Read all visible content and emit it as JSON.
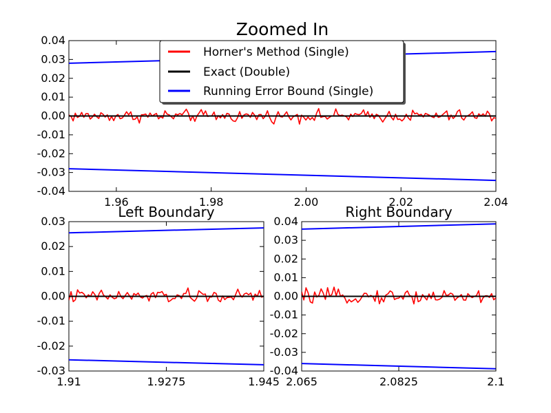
{
  "chart_data": [
    {
      "type": "line",
      "title": "Zoomed In",
      "xlabel": "",
      "ylabel": "",
      "xlim": [
        1.95,
        2.04
      ],
      "ylim": [
        -0.04,
        0.04
      ],
      "xticks": [
        "1.96",
        "1.98",
        "2.00",
        "2.02",
        "2.04"
      ],
      "yticks": [
        "0.04",
        "0.03",
        "0.02",
        "0.01",
        "0.00",
        "-0.01",
        "-0.02",
        "-0.03",
        "-0.04"
      ],
      "grid": false,
      "legend_position": "upper-center",
      "series": [
        {
          "name": "Horner's Method (Single)",
          "color": "#ff0000",
          "style": "noisy",
          "amplitude": 0.003,
          "x": [
            1.95,
            2.04
          ]
        },
        {
          "name": "Exact (Double)",
          "color": "#000000",
          "x": [
            1.95,
            2.04
          ],
          "y": [
            0.0,
            0.0
          ]
        },
        {
          "name": "Running Error Bound (Single)",
          "color": "#0000ff",
          "x": [
            1.95,
            2.04
          ],
          "y": [
            0.028,
            0.0342
          ]
        },
        {
          "name": "",
          "color": "#0000ff",
          "x": [
            1.95,
            2.04
          ],
          "y": [
            -0.028,
            -0.0342
          ]
        }
      ]
    },
    {
      "type": "line",
      "title": "Left Boundary",
      "xlim": [
        1.91,
        1.945
      ],
      "ylim": [
        -0.03,
        0.03
      ],
      "xticks": [
        "1.91",
        "1.9275",
        "1.945"
      ],
      "yticks": [
        "0.03",
        "0.02",
        "0.01",
        "0.00",
        "-0.01",
        "-0.02",
        "-0.03"
      ],
      "grid": false,
      "series": [
        {
          "name": "Horner's Method (Single)",
          "color": "#ff0000",
          "style": "noisy",
          "amplitude": 0.0025,
          "x": [
            1.91,
            1.945
          ]
        },
        {
          "name": "Exact (Double)",
          "color": "#000000",
          "x": [
            1.91,
            1.945
          ],
          "y": [
            0.0,
            0.0
          ]
        },
        {
          "name": "Running Error Bound (Single)",
          "color": "#0000ff",
          "x": [
            1.91,
            1.945
          ],
          "y": [
            0.0255,
            0.0275
          ]
        },
        {
          "name": "",
          "color": "#0000ff",
          "x": [
            1.91,
            1.945
          ],
          "y": [
            -0.0255,
            -0.0275
          ]
        }
      ]
    },
    {
      "type": "line",
      "title": "Right Boundary",
      "xlim": [
        2.065,
        2.1
      ],
      "ylim": [
        -0.04,
        0.04
      ],
      "xticks": [
        "2.065",
        "2.0825",
        "2.1"
      ],
      "yticks": [
        "0.04",
        "0.03",
        "0.02",
        "0.01",
        "0.00",
        "-0.01",
        "-0.02",
        "-0.03",
        "-0.04"
      ],
      "grid": false,
      "series": [
        {
          "name": "Horner's Method (Single)",
          "color": "#ff0000",
          "style": "noisy",
          "amplitude": 0.0035,
          "x": [
            2.065,
            2.1
          ]
        },
        {
          "name": "Exact (Double)",
          "color": "#000000",
          "x": [
            2.065,
            2.1
          ],
          "y": [
            0.0,
            0.0
          ]
        },
        {
          "name": "Running Error Bound (Single)",
          "color": "#0000ff",
          "x": [
            2.065,
            2.1
          ],
          "y": [
            0.036,
            0.0388
          ]
        },
        {
          "name": "",
          "color": "#0000ff",
          "x": [
            2.065,
            2.1
          ],
          "y": [
            -0.036,
            -0.0388
          ]
        }
      ]
    }
  ]
}
